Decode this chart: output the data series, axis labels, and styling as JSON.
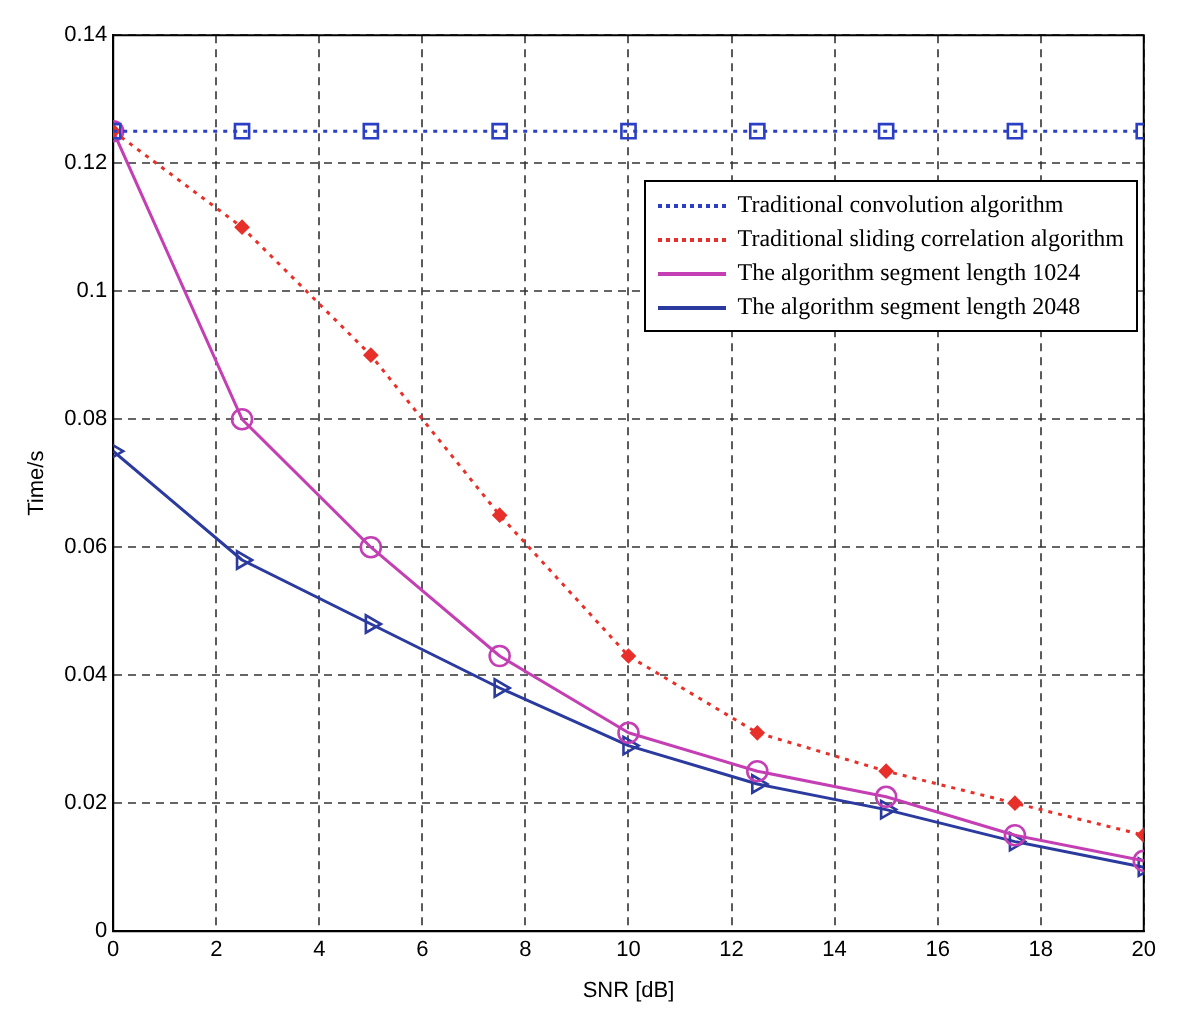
{
  "chart_data": {
    "type": "line",
    "xlabel": "SNR [dB]",
    "ylabel": "Time/s",
    "x": [
      0,
      2.5,
      5,
      7.5,
      10,
      12.5,
      15,
      17.5,
      20
    ],
    "xlim": [
      0,
      20
    ],
    "xticks": [
      0,
      2,
      4,
      6,
      8,
      10,
      12,
      14,
      16,
      18,
      20
    ],
    "ylim": [
      0,
      0.14
    ],
    "yticks": [
      0,
      0.02,
      0.04,
      0.06,
      0.08,
      0.1,
      0.12,
      0.14
    ],
    "grid": true,
    "legend": "top right",
    "series": [
      {
        "name": "Traditional convolution algorithm",
        "color": "#2b3fc4",
        "marker": "square",
        "line_style": "dotted",
        "values": [
          0.125,
          0.125,
          0.125,
          0.125,
          0.125,
          0.125,
          0.125,
          0.125,
          0.125
        ]
      },
      {
        "name": "Traditional sliding correlation algorithm",
        "color": "#e8302a",
        "marker": "diamond",
        "line_style": "dotted",
        "values": [
          0.125,
          0.11,
          0.09,
          0.065,
          0.043,
          0.031,
          0.025,
          0.02,
          0.015
        ]
      },
      {
        "name": "The algorithm segment length 1024",
        "color": "#c43fb4",
        "marker": "circle",
        "line_style": "solid",
        "values": [
          0.125,
          0.08,
          0.06,
          0.043,
          0.031,
          0.025,
          0.021,
          0.015,
          0.011
        ]
      },
      {
        "name": "The algorithm segment length 2048",
        "color": "#2a3a9e",
        "marker": "triangle",
        "line_style": "solid",
        "values": [
          0.075,
          0.058,
          0.048,
          0.038,
          0.029,
          0.023,
          0.019,
          0.014,
          0.01
        ]
      }
    ]
  }
}
